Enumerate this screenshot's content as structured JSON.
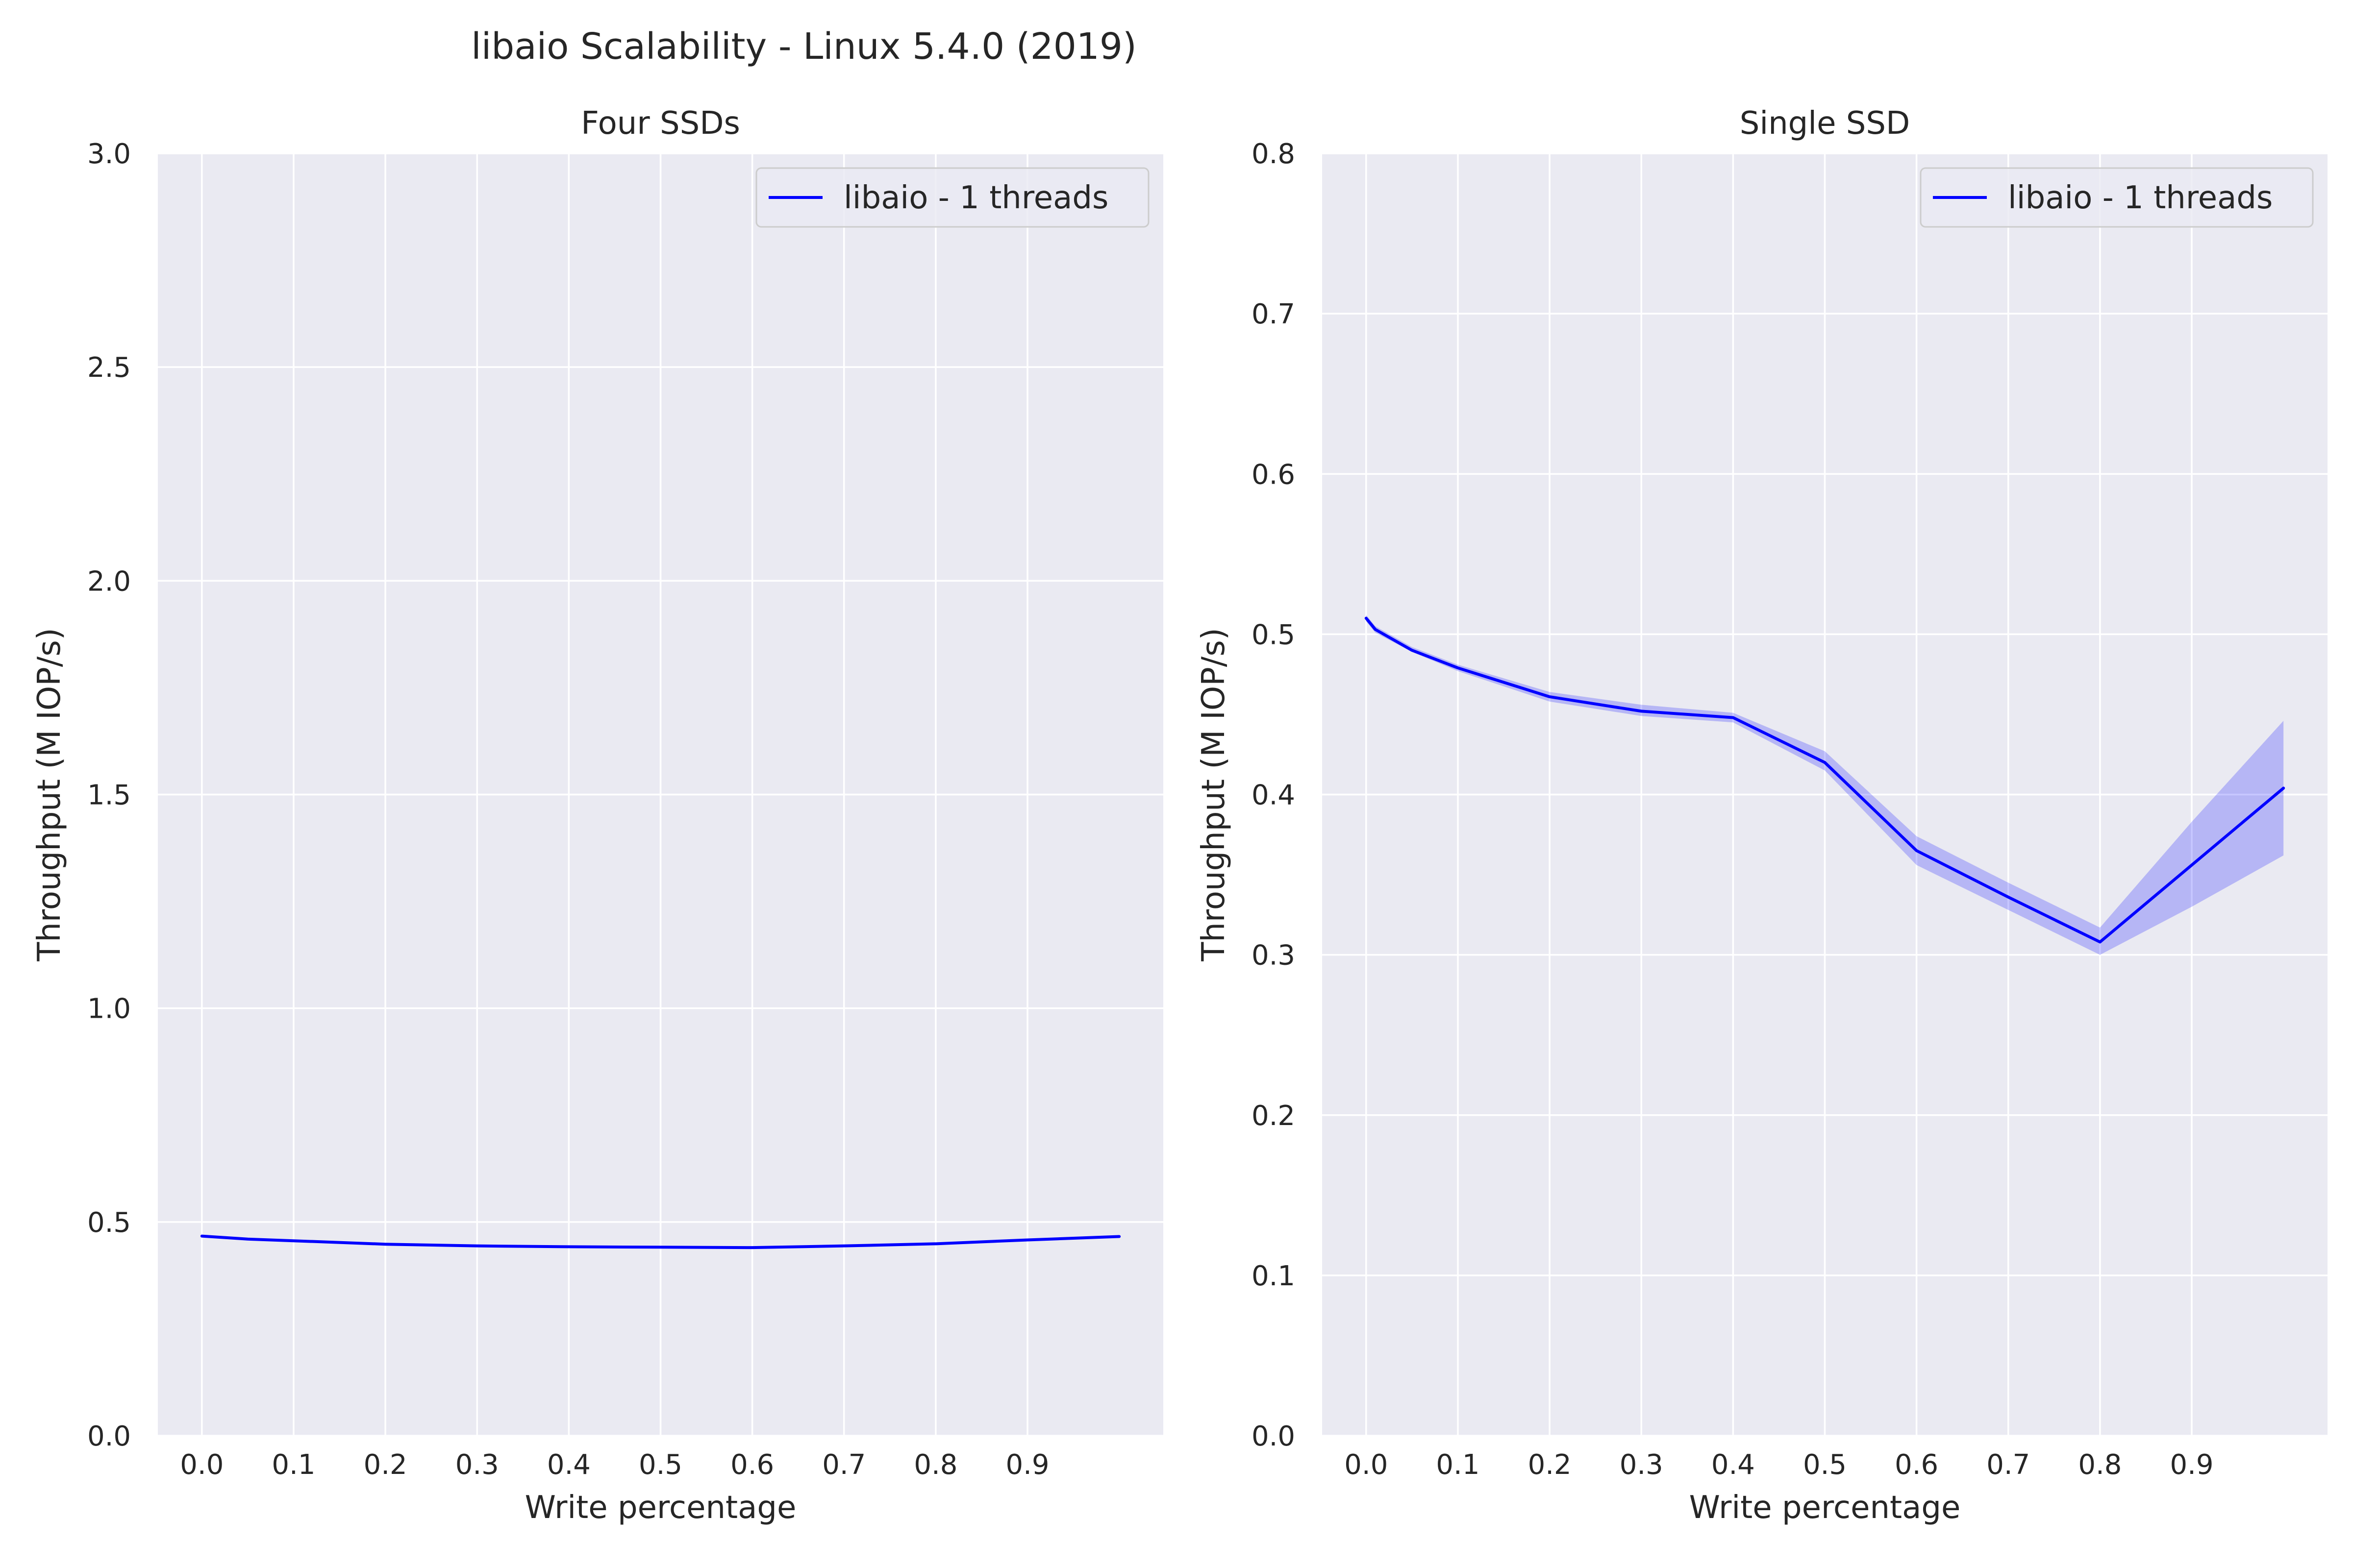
{
  "figure": {
    "title": "libaio Scalability - Linux 5.4.0 (2019)"
  },
  "colors": {
    "plot_background": "#eaeaf2",
    "grid": "#ffffff",
    "line": "#0000ff",
    "band": "#0000ff"
  },
  "chart_data": [
    {
      "type": "line",
      "title": "Four SSDs",
      "xlabel": "Write percentage",
      "ylabel": "Throughput (M IOP/s)",
      "xlim": [
        -0.048,
        1.048
      ],
      "ylim": [
        0.0,
        3.0
      ],
      "xticks": [
        "0.0",
        "0.1",
        "0.2",
        "0.3",
        "0.4",
        "0.5",
        "0.6",
        "0.7",
        "0.8",
        "0.9"
      ],
      "yticks": [
        "0.0",
        "0.5",
        "1.0",
        "1.5",
        "2.0",
        "2.5",
        "3.0"
      ],
      "grid": true,
      "legend_position": "top-right",
      "series": [
        {
          "name": "libaio - 1 threads",
          "x": [
            0.0,
            0.05,
            0.1,
            0.2,
            0.3,
            0.4,
            0.5,
            0.6,
            0.7,
            0.8,
            0.9,
            1.0
          ],
          "y": [
            0.467,
            0.46,
            0.456,
            0.448,
            0.444,
            0.442,
            0.441,
            0.44,
            0.444,
            0.449,
            0.458,
            0.466
          ],
          "ci_low": [
            0.467,
            0.46,
            0.456,
            0.448,
            0.444,
            0.442,
            0.441,
            0.44,
            0.444,
            0.449,
            0.458,
            0.466
          ],
          "ci_high": [
            0.467,
            0.46,
            0.456,
            0.448,
            0.444,
            0.442,
            0.441,
            0.44,
            0.444,
            0.449,
            0.458,
            0.466
          ]
        }
      ]
    },
    {
      "type": "line",
      "title": "Single SSD",
      "xlabel": "Write percentage",
      "ylabel": "Throughput (M IOP/s)",
      "xlim": [
        -0.048,
        1.048
      ],
      "ylim": [
        0.0,
        0.8
      ],
      "xticks": [
        "0.0",
        "0.1",
        "0.2",
        "0.3",
        "0.4",
        "0.5",
        "0.6",
        "0.7",
        "0.8",
        "0.9"
      ],
      "yticks": [
        "0.0",
        "0.1",
        "0.2",
        "0.3",
        "0.4",
        "0.5",
        "0.6",
        "0.7",
        "0.8"
      ],
      "grid": true,
      "legend_position": "top-right",
      "series": [
        {
          "name": "libaio - 1 threads",
          "x": [
            0.0,
            0.01,
            0.05,
            0.1,
            0.2,
            0.3,
            0.4,
            0.5,
            0.6,
            0.7,
            0.8,
            0.9,
            1.0
          ],
          "y": [
            0.51,
            0.503,
            0.49,
            0.479,
            0.461,
            0.452,
            0.448,
            0.42,
            0.365,
            0.336,
            0.308,
            0.356,
            0.404
          ],
          "ci_low": [
            0.508,
            0.501,
            0.489,
            0.477,
            0.458,
            0.449,
            0.445,
            0.415,
            0.356,
            0.328,
            0.3,
            0.33,
            0.362
          ],
          "ci_high": [
            0.512,
            0.505,
            0.492,
            0.481,
            0.464,
            0.456,
            0.451,
            0.427,
            0.374,
            0.345,
            0.317,
            0.383,
            0.446
          ]
        }
      ]
    }
  ]
}
